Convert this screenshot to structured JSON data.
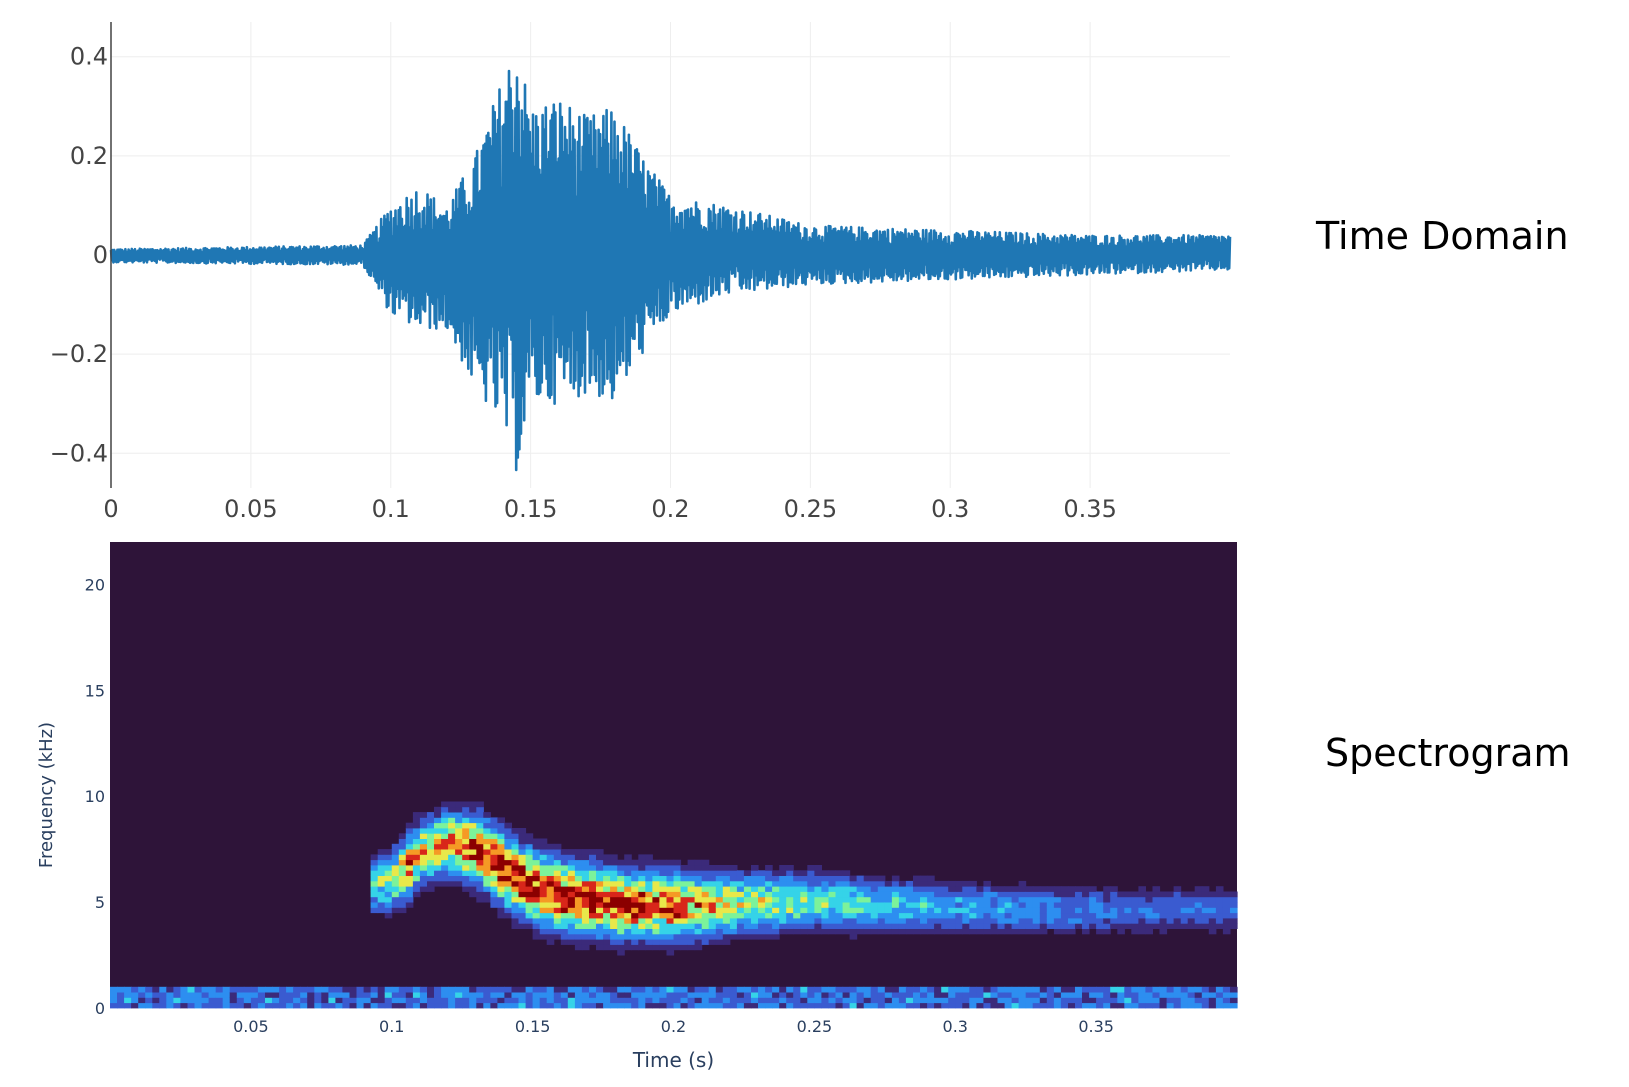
{
  "labels": {
    "time_domain": "Time Domain",
    "spectrogram": "Spectrogram"
  },
  "colors": {
    "waveform": "#1f77b4",
    "grid": "#eeeeee",
    "axis_text": "#444444",
    "spectro_axis_text": "#2a3f5f",
    "spectro_background": "#2e1439"
  },
  "chart_data": [
    {
      "type": "line",
      "name": "time_domain_waveform",
      "title": "",
      "xlabel": "",
      "ylabel": "",
      "xlim": [
        0,
        0.4
      ],
      "ylim": [
        -0.47,
        0.47
      ],
      "x_ticks": [
        0,
        0.05,
        0.1,
        0.15,
        0.2,
        0.25,
        0.3,
        0.35
      ],
      "x_tick_labels": [
        "0",
        "0.05",
        "0.1",
        "0.15",
        "0.2",
        "0.25",
        "0.3",
        "0.35"
      ],
      "y_ticks": [
        0.4,
        0.2,
        0,
        -0.2,
        -0.4
      ],
      "y_tick_labels": [
        "0.4",
        "0.2",
        "0",
        "−0.2",
        "−0.4"
      ],
      "grid": true,
      "envelope": {
        "description": "amplitude envelope of the waveform over time",
        "t": [
          0,
          0.09,
          0.1,
          0.11,
          0.12,
          0.13,
          0.14,
          0.145,
          0.15,
          0.16,
          0.17,
          0.18,
          0.19,
          0.2,
          0.22,
          0.25,
          0.3,
          0.35,
          0.4
        ],
        "upper": [
          0.012,
          0.02,
          0.1,
          0.14,
          0.1,
          0.2,
          0.36,
          0.44,
          0.3,
          0.32,
          0.28,
          0.3,
          0.2,
          0.12,
          0.1,
          0.06,
          0.05,
          0.04,
          0.04
        ],
        "lower": [
          -0.015,
          -0.02,
          -0.12,
          -0.15,
          -0.15,
          -0.27,
          -0.35,
          -0.44,
          -0.3,
          -0.3,
          -0.28,
          -0.3,
          -0.2,
          -0.12,
          -0.08,
          -0.06,
          -0.05,
          -0.04,
          -0.03
        ]
      }
    },
    {
      "type": "heatmap",
      "name": "spectrogram",
      "title": "",
      "xlabel": "Time (s)",
      "ylabel": "Frequency (kHz)",
      "xlim": [
        0,
        0.4
      ],
      "ylim": [
        0,
        22
      ],
      "x_ticks": [
        0.05,
        0.1,
        0.15,
        0.2,
        0.25,
        0.3,
        0.35
      ],
      "x_tick_labels": [
        "0.05",
        "0.1",
        "0.15",
        "0.2",
        "0.25",
        "0.3",
        "0.35"
      ],
      "y_ticks": [
        0,
        5,
        10,
        15,
        20
      ],
      "y_tick_labels": [
        "0",
        "5",
        "10",
        "15",
        "20"
      ],
      "colorscale": [
        "#2e1439",
        "#3b2a7a",
        "#3a5bd0",
        "#2d8ef0",
        "#35d3e8",
        "#7cf29a",
        "#e8e84a",
        "#f59a25",
        "#d8261a",
        "#8b0000"
      ],
      "ridge": {
        "description": "dominant frequency band over time",
        "t": [
          0.092,
          0.1,
          0.105,
          0.11,
          0.12,
          0.13,
          0.14,
          0.15,
          0.16,
          0.18,
          0.2,
          0.22,
          0.25,
          0.28,
          0.3,
          0.35,
          0.4
        ],
        "freq_khz": [
          5.7,
          5.8,
          6.5,
          7.2,
          7.7,
          7.4,
          6.4,
          5.6,
          5.2,
          4.8,
          4.7,
          4.8,
          4.9,
          4.7,
          4.6,
          4.5,
          4.5
        ],
        "intensity": [
          0.5,
          0.6,
          0.85,
          0.75,
          0.8,
          0.95,
          1.0,
          1.0,
          1.0,
          0.95,
          0.9,
          0.7,
          0.55,
          0.45,
          0.4,
          0.3,
          0.25
        ]
      }
    }
  ]
}
